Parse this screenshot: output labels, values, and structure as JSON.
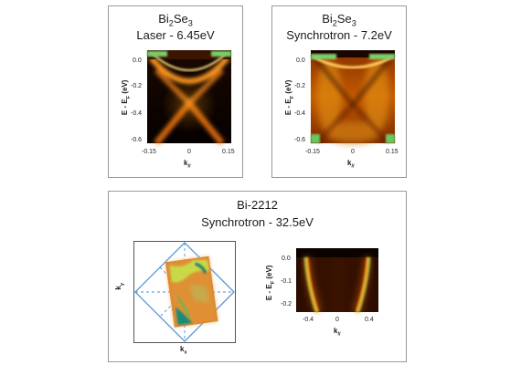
{
  "panels": [
    {
      "id": "bi2se3-laser",
      "title_main": "Bi",
      "title_sub1": "2",
      "title_mid": "Se",
      "title_sub2": "3",
      "subtitle": "Laser - 6.45eV",
      "ylabel": "E - E",
      "ylabel_sub": "F",
      "ylabel_unit": " (eV)",
      "xlabel": "k",
      "xlabel_sub": "//",
      "yticks": [
        "0.0",
        "-0.2",
        "-0.4",
        "-0.6"
      ],
      "xticks": [
        "-0.15",
        "0",
        "0.15"
      ]
    },
    {
      "id": "bi2se3-synchrotron",
      "title_main": "Bi",
      "title_sub1": "2",
      "title_mid": "Se",
      "title_sub2": "3",
      "subtitle": "Synchrotron - 7.2eV",
      "ylabel": "E - E",
      "ylabel_sub": "F",
      "ylabel_unit": " (eV)",
      "xlabel": "k",
      "xlabel_sub": "//",
      "yticks": [
        "0.0",
        "-0.2",
        "-0.4",
        "-0.6"
      ],
      "xticks": [
        "-0.15",
        "0",
        "0.15"
      ]
    },
    {
      "id": "bi2212-synchrotron",
      "title": "Bi-2212",
      "subtitle": "Synchrotron - 32.5eV",
      "fs_ylabel": "k",
      "fs_ylabel_sub": "y",
      "fs_xlabel": "k",
      "fs_xlabel_sub": "x",
      "ylabel": "E - E",
      "ylabel_sub": "F",
      "ylabel_unit": " (eV)",
      "xlabel": "k",
      "xlabel_sub": "//",
      "yticks": [
        "0.0",
        "-0.1",
        "-0.2"
      ],
      "xticks": [
        "-0.4",
        "0",
        "0.4"
      ]
    }
  ]
}
